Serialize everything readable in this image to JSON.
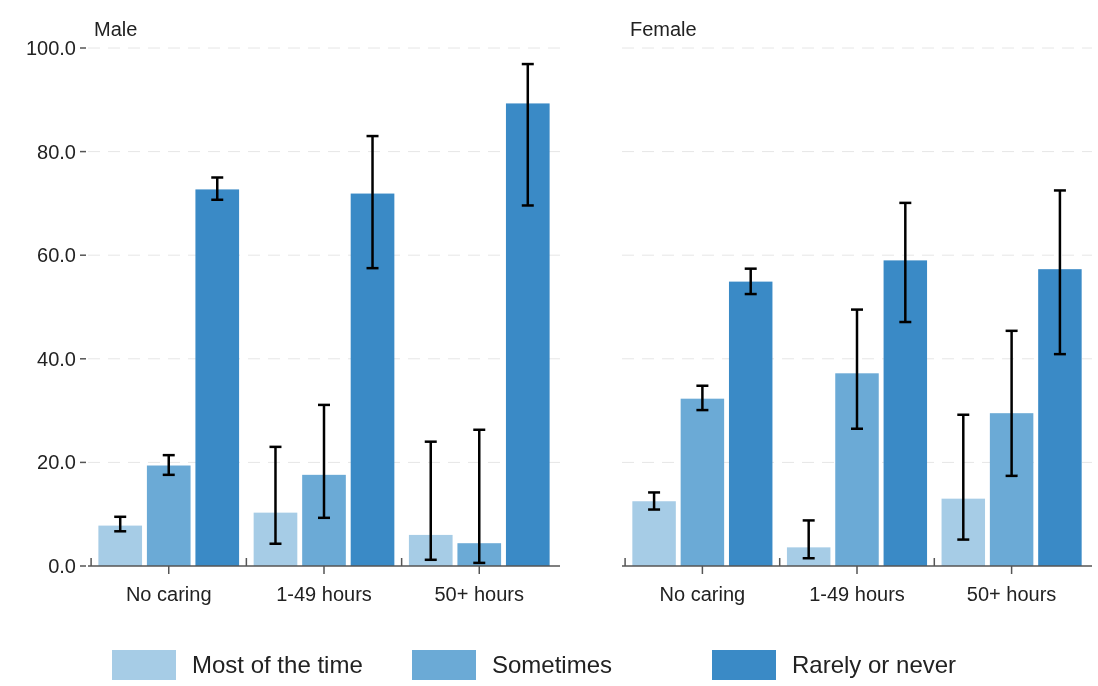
{
  "chart_data": [
    {
      "type": "bar",
      "title": "Male",
      "categories": [
        "No caring",
        "1-49 hours",
        "50+ hours"
      ],
      "ylim": [
        0,
        100
      ],
      "yticks": [
        {
          "value": 0,
          "label": "0.0"
        },
        {
          "value": 20,
          "label": "20.0"
        },
        {
          "value": 40,
          "label": "40.0"
        },
        {
          "value": 60,
          "label": "60.0"
        },
        {
          "value": 80,
          "label": "80.0"
        },
        {
          "value": 100,
          "label": "100.0"
        }
      ],
      "grid": "y",
      "legend": "bottom",
      "series": [
        {
          "name": "Most of the time",
          "color": "#a6cce6",
          "values": [
            7.8,
            10.3,
            6.0
          ],
          "errors": [
            [
              6.7,
              9.5
            ],
            [
              4.3,
              23.0
            ],
            [
              1.2,
              24.0
            ]
          ]
        },
        {
          "name": "Sometimes",
          "color": "#6baad6",
          "values": [
            19.4,
            17.6,
            4.4
          ],
          "errors": [
            [
              17.6,
              21.4
            ],
            [
              9.3,
              31.1
            ],
            [
              0.6,
              26.3
            ]
          ]
        },
        {
          "name": "Rarely or never",
          "color": "#3a8ac6",
          "values": [
            72.7,
            71.9,
            89.3
          ],
          "errors": [
            [
              70.7,
              75.0
            ],
            [
              57.5,
              83.0
            ],
            [
              69.6,
              96.9
            ]
          ]
        }
      ]
    },
    {
      "type": "bar",
      "title": "Female",
      "categories": [
        "No caring",
        "1-49 hours",
        "50+ hours"
      ],
      "ylim": [
        0,
        100
      ],
      "yticks": [
        0,
        20,
        40,
        60,
        80,
        100
      ],
      "grid": "y",
      "tick_labels": "x",
      "series": [
        {
          "color": "#a6cce6",
          "values": [
            12.5,
            3.6,
            13.0
          ],
          "errors": [
            [
              10.9,
              14.2
            ],
            [
              1.5,
              8.8
            ],
            [
              5.1,
              29.2
            ]
          ]
        },
        {
          "color": "#6baad6",
          "values": [
            32.3,
            37.2,
            29.5
          ],
          "errors": [
            [
              30.1,
              34.8
            ],
            [
              26.5,
              49.5
            ],
            [
              17.4,
              45.4
            ]
          ]
        },
        {
          "color": "#3a8ac6",
          "values": [
            54.9,
            59.0,
            57.3
          ],
          "errors": [
            [
              52.5,
              57.4
            ],
            [
              47.1,
              70.1
            ],
            [
              40.9,
              72.5
            ]
          ]
        }
      ]
    }
  ]
}
